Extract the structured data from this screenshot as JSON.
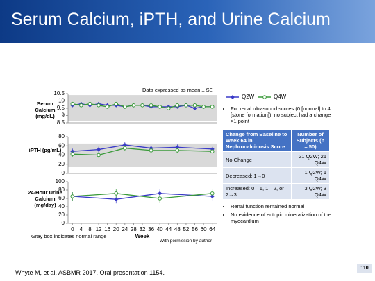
{
  "slide": {
    "title": "Serum Calcium, iPTH, and Urine Calcium",
    "note": "Data expressed as mean ± SE",
    "gray_note": "Gray box indicates normal range",
    "permission": "With permission by author.",
    "citation": "Whyte M, et al. ASBMR 2017. Oral presentation 1154.",
    "page": "110"
  },
  "bullets_top": [
    "For renal ultrasound scores (0 [normal] to 4 [stone formation]), no subject had a change >1 point"
  ],
  "table": {
    "header": [
      "Change from Baseline to Week 64 in Nephrocalcinosis Score",
      "Number of Subjects (n = 50)"
    ],
    "rows": [
      [
        "No Change",
        "21 Q2W; 21 Q4W"
      ],
      [
        "Decreased: 1→0",
        "1 Q2W; 1 Q4W"
      ],
      [
        "Increased: 0→1, 1→2, or 2→3",
        "3 Q2W; 3 Q4W"
      ]
    ]
  },
  "bullets_bottom": [
    "Renal function remained normal",
    "No evidence of ectopic mineralization of the myocardium"
  ],
  "chart_data": [
    {
      "type": "line",
      "ylabel": "Serum Calcium (mg/dL)",
      "x": [
        0,
        4,
        8,
        12,
        16,
        20,
        24,
        28,
        32,
        36,
        40,
        44,
        48,
        52,
        56,
        60,
        64
      ],
      "xlim": [
        -2,
        66
      ],
      "ylim": [
        8.5,
        10.5
      ],
      "yticks": [
        8.5,
        9,
        9.5,
        10,
        10.5
      ],
      "normal_range": [
        8.6,
        10.4
      ],
      "series": [
        {
          "name": "Q2W",
          "color": "#3a3ac8",
          "marker": "diamond",
          "values": [
            9.7,
            9.8,
            9.7,
            9.8,
            9.7,
            9.7,
            9.6,
            9.7,
            9.7,
            9.6,
            9.6,
            9.6,
            9.6,
            9.7,
            9.5,
            9.6,
            9.6
          ],
          "errors": [
            0.1,
            0.1,
            0.1,
            0.1,
            0.1,
            0.1,
            0.1,
            0.1,
            0.1,
            0.1,
            0.1,
            0.1,
            0.1,
            0.1,
            0.1,
            0.1,
            0.1
          ]
        },
        {
          "name": "Q4W",
          "color": "#3a9a3a",
          "marker": "circle",
          "values": [
            9.8,
            9.7,
            9.8,
            9.7,
            9.6,
            9.8,
            9.6,
            9.7,
            9.7,
            9.7,
            9.6,
            9.5,
            9.7,
            9.7,
            9.7,
            9.6,
            9.6
          ],
          "errors": [
            0.1,
            0.1,
            0.1,
            0.1,
            0.1,
            0.1,
            0.1,
            0.1,
            0.1,
            0.1,
            0.1,
            0.1,
            0.1,
            0.1,
            0.1,
            0.1,
            0.1
          ]
        }
      ]
    },
    {
      "type": "line",
      "ylabel": "iPTH (pg/mL)",
      "x": [
        0,
        12,
        24,
        36,
        48,
        64
      ],
      "xlim": [
        -2,
        66
      ],
      "ylim": [
        0,
        80
      ],
      "yticks": [
        0,
        20,
        40,
        60,
        80
      ],
      "normal_range": [
        15,
        65
      ],
      "series": [
        {
          "name": "Q2W",
          "color": "#3a3ac8",
          "marker": "diamond",
          "values": [
            48,
            52,
            62,
            55,
            57,
            53
          ],
          "errors": [
            6,
            6,
            6,
            6,
            6,
            6
          ]
        },
        {
          "name": "Q4W",
          "color": "#3a9a3a",
          "marker": "circle",
          "values": [
            42,
            40,
            55,
            50,
            50,
            48
          ],
          "errors": [
            6,
            6,
            6,
            6,
            6,
            6
          ]
        }
      ]
    },
    {
      "type": "line",
      "ylabel": "24-Hour Urine Calcium (mg/day)",
      "xlabel": "Week",
      "x": [
        0,
        20,
        40,
        64
      ],
      "xlim": [
        -2,
        66
      ],
      "ylim": [
        0,
        100
      ],
      "yticks": [
        0,
        20,
        40,
        60,
        80,
        100
      ],
      "xticks": [
        0,
        4,
        8,
        12,
        16,
        20,
        24,
        28,
        32,
        36,
        40,
        44,
        48,
        52,
        56,
        60,
        64
      ],
      "series": [
        {
          "name": "Q2W",
          "color": "#3a3ac8",
          "marker": "diamond",
          "values": [
            65,
            58,
            72,
            65
          ],
          "errors": [
            10,
            10,
            10,
            10
          ]
        },
        {
          "name": "Q4W",
          "color": "#3a9a3a",
          "marker": "circle",
          "values": [
            65,
            72,
            60,
            72
          ],
          "errors": [
            10,
            10,
            10,
            10
          ]
        }
      ]
    }
  ]
}
